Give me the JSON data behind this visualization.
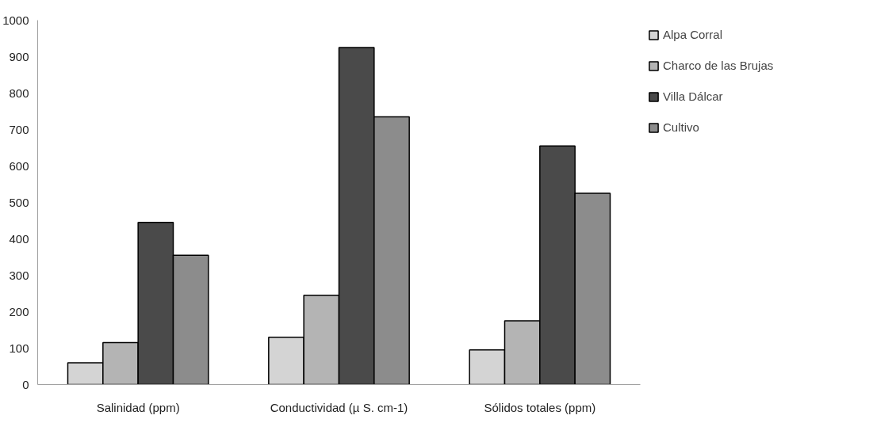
{
  "chart_data": {
    "type": "bar",
    "categories": [
      "Salinidad (ppm)",
      "Conductividad (µ S. cm-1)",
      "Sólidos totales (ppm)"
    ],
    "series": [
      {
        "name": "Alpa Corral",
        "color": "#d4d4d4",
        "values": [
          60,
          130,
          95
        ]
      },
      {
        "name": "Charco de las Brujas",
        "color": "#b4b4b4",
        "values": [
          115,
          245,
          175
        ]
      },
      {
        "name": "Villa Dálcar",
        "color": "#4a4a4a",
        "values": [
          445,
          925,
          655
        ]
      },
      {
        "name": "Cultivo",
        "color": "#8c8c8c",
        "values": [
          355,
          735,
          525
        ]
      }
    ],
    "ylim": [
      0,
      1000
    ],
    "yticks": [
      0,
      100,
      200,
      300,
      400,
      500,
      600,
      700,
      800,
      900,
      1000
    ],
    "grid": false,
    "legend": "top right"
  }
}
